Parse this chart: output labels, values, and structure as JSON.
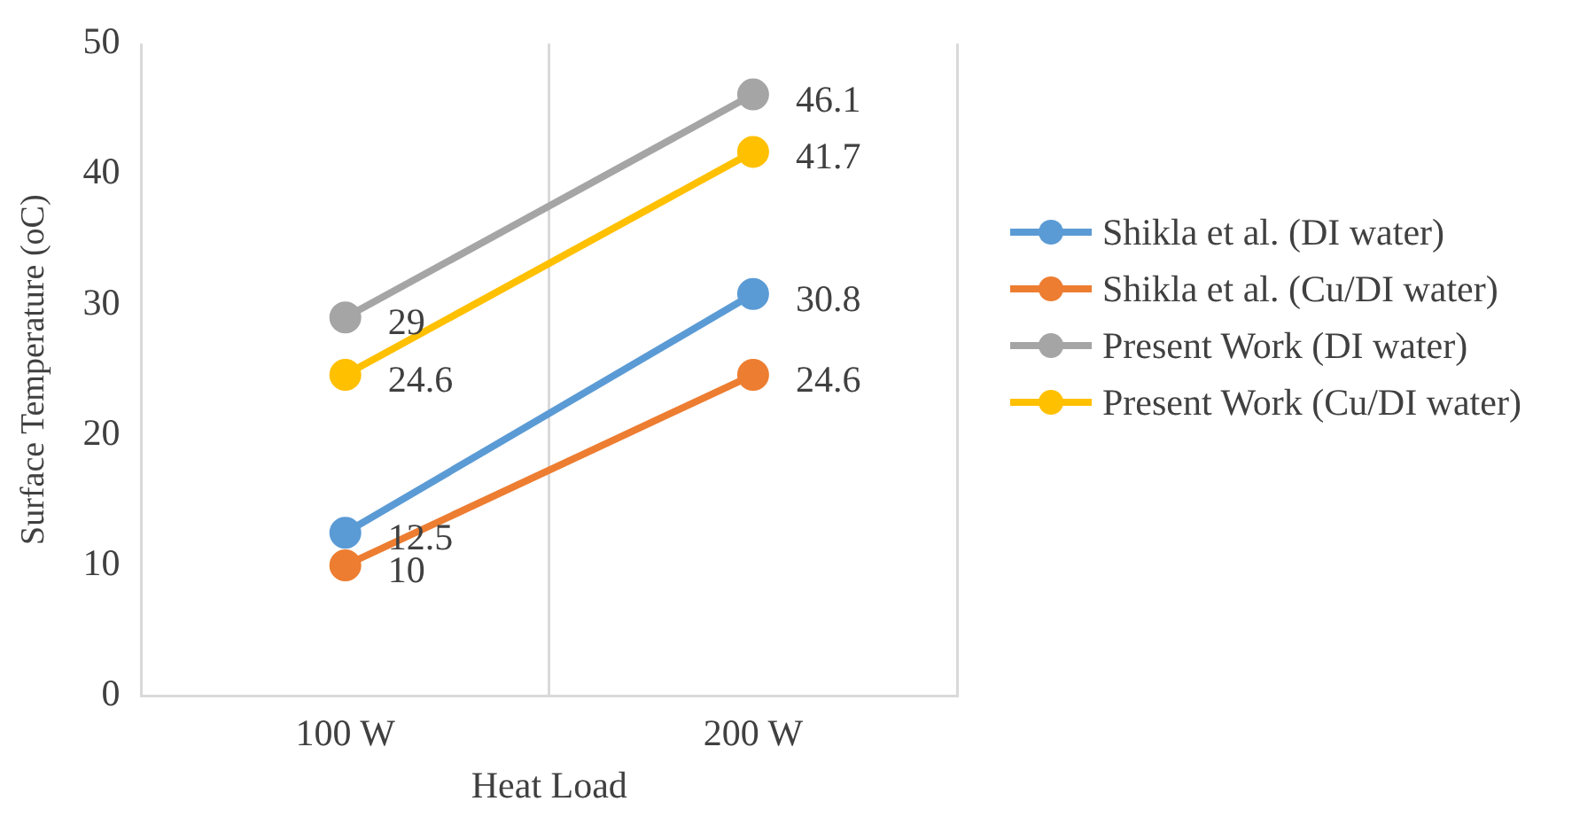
{
  "chart_data": {
    "type": "line",
    "xlabel": "Heat Load",
    "ylabel": "Surface Temperature (oC)",
    "categories": [
      "100 W",
      "200 W"
    ],
    "series": [
      {
        "name": "Shikla et al. (DI water)",
        "color": "#5b9bd5",
        "values": [
          12.5,
          30.8
        ]
      },
      {
        "name": "Shikla et al. (Cu/DI water)",
        "color": "#ed7d31",
        "values": [
          10,
          24.6
        ]
      },
      {
        "name": "Present Work (DI water)",
        "color": "#a5a5a5",
        "values": [
          29,
          46.1
        ]
      },
      {
        "name": "Present Work (Cu/DI water)",
        "color": "#ffc000",
        "values": [
          24.6,
          41.7
        ]
      }
    ],
    "ylim": [
      0,
      50
    ],
    "yticks": [
      0,
      10,
      20,
      30,
      40,
      50
    ],
    "grid": "x",
    "legend": "right",
    "marker": "circle",
    "data_labels": true
  }
}
